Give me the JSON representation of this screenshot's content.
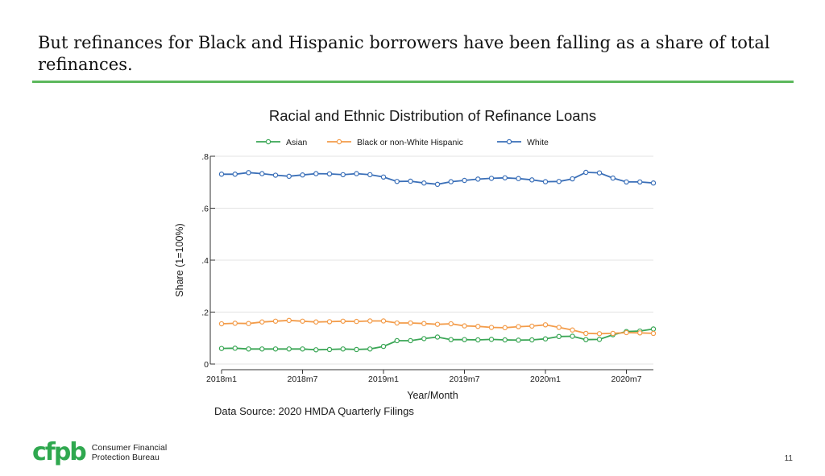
{
  "slide": {
    "title": "But refinances for Black and Hispanic borrowers have been falling as a share of total refinances.",
    "page_number": "11",
    "accent_color": "#5cb85c"
  },
  "footer": {
    "logo_mark": "cfpb",
    "logo_line1": "Consumer Financial",
    "logo_line2": "Protection Bureau"
  },
  "chart_data": {
    "type": "line",
    "title": "Racial and Ethnic Distribution of Refinance Loans",
    "xlabel": "Year/Month",
    "ylabel": "Share (1=100%)",
    "source": "Data Source: 2020 HMDA Quarterly Filings",
    "ylim": [
      0,
      0.8
    ],
    "yticks": [
      0,
      0.2,
      0.4,
      0.6,
      0.8
    ],
    "ytick_labels": [
      "0",
      ".2",
      ".4",
      ".6",
      ".8"
    ],
    "xticks": [
      0,
      6,
      12,
      18,
      24,
      30
    ],
    "xtick_labels": [
      "2018m1",
      "2018m7",
      "2019m1",
      "2019m7",
      "2020m1",
      "2020m7"
    ],
    "xlim": [
      0,
      32
    ],
    "grid": true,
    "legend_position": "top",
    "x": [
      "2018m1",
      "2018m2",
      "2018m3",
      "2018m4",
      "2018m5",
      "2018m6",
      "2018m7",
      "2018m8",
      "2018m9",
      "2018m10",
      "2018m11",
      "2018m12",
      "2019m1",
      "2019m2",
      "2019m3",
      "2019m4",
      "2019m5",
      "2019m6",
      "2019m7",
      "2019m8",
      "2019m9",
      "2019m10",
      "2019m11",
      "2019m12",
      "2020m1",
      "2020m2",
      "2020m3",
      "2020m4",
      "2020m5",
      "2020m6",
      "2020m7",
      "2020m8",
      "2020m9"
    ],
    "series": [
      {
        "name": "Asian",
        "color": "#3aa655",
        "values": [
          0.06,
          0.061,
          0.058,
          0.058,
          0.058,
          0.058,
          0.058,
          0.055,
          0.056,
          0.058,
          0.056,
          0.058,
          0.068,
          0.09,
          0.09,
          0.098,
          0.104,
          0.094,
          0.094,
          0.093,
          0.095,
          0.093,
          0.092,
          0.093,
          0.097,
          0.106,
          0.107,
          0.094,
          0.095,
          0.113,
          0.125,
          0.127,
          0.135
        ]
      },
      {
        "name": "Black or non-White Hispanic",
        "color": "#f39c4a",
        "values": [
          0.155,
          0.157,
          0.156,
          0.162,
          0.165,
          0.168,
          0.165,
          0.162,
          0.163,
          0.165,
          0.164,
          0.166,
          0.166,
          0.158,
          0.158,
          0.156,
          0.153,
          0.155,
          0.147,
          0.145,
          0.141,
          0.14,
          0.144,
          0.146,
          0.151,
          0.141,
          0.131,
          0.118,
          0.117,
          0.118,
          0.121,
          0.12,
          0.118
        ]
      },
      {
        "name": "White",
        "color": "#3a6fb8",
        "values": [
          0.731,
          0.731,
          0.737,
          0.733,
          0.727,
          0.723,
          0.728,
          0.733,
          0.732,
          0.729,
          0.733,
          0.729,
          0.72,
          0.703,
          0.704,
          0.697,
          0.692,
          0.702,
          0.707,
          0.712,
          0.715,
          0.717,
          0.714,
          0.709,
          0.702,
          0.703,
          0.713,
          0.738,
          0.736,
          0.716,
          0.701,
          0.701,
          0.697
        ]
      }
    ]
  }
}
